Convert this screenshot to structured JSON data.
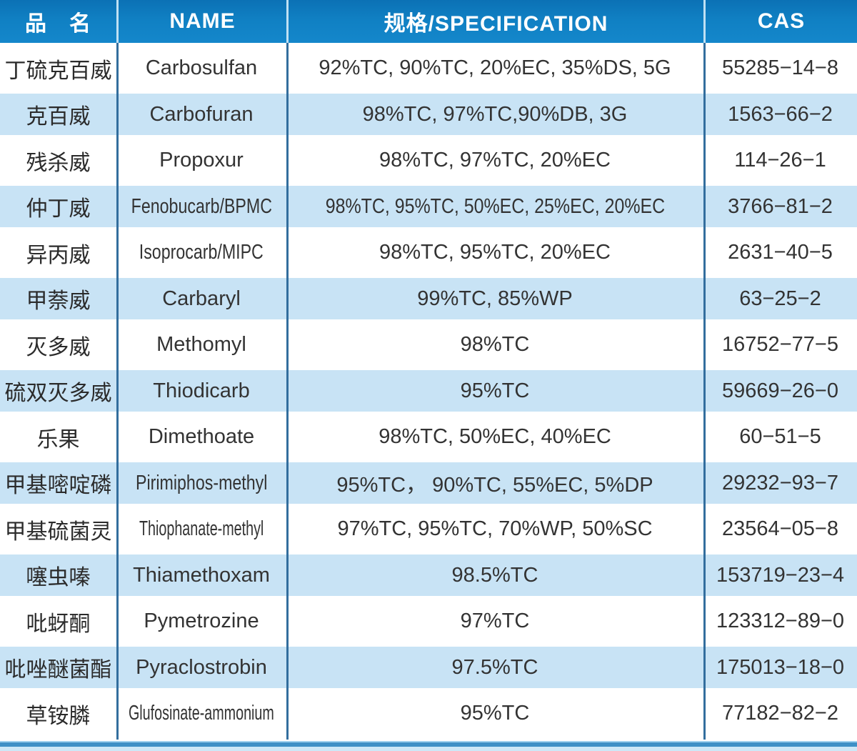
{
  "table": {
    "headers": [
      {
        "label": "品　名"
      },
      {
        "label": "NAME"
      },
      {
        "label": "规格/SPECIFICATION"
      },
      {
        "label": "CAS"
      }
    ],
    "rows": [
      {
        "cn": "丁硫克百威",
        "name": "Carbosulfan",
        "spec": "92%TC, 90%TC, 20%EC, 35%DS, 5G",
        "cas": "55285−14−8"
      },
      {
        "cn": "克百威",
        "name": "Carbofuran",
        "spec": "98%TC, 97%TC,90%DB, 3G",
        "cas": "1563−66−2"
      },
      {
        "cn": "残杀威",
        "name": "Propoxur",
        "spec": "98%TC, 97%TC, 20%EC",
        "cas": "114−26−1"
      },
      {
        "cn": "仲丁威",
        "name": "Fenobucarb/BPMC",
        "spec": "98%TC, 95%TC, 50%EC, 25%EC, 20%EC",
        "cas": "3766−81−2"
      },
      {
        "cn": "异丙威",
        "name": "Isoprocarb/MIPC",
        "spec": "98%TC, 95%TC, 20%EC",
        "cas": "2631−40−5"
      },
      {
        "cn": "甲萘威",
        "name": "Carbaryl",
        "spec": "99%TC, 85%WP",
        "cas": "63−25−2"
      },
      {
        "cn": "灭多威",
        "name": "Methomyl",
        "spec": "98%TC",
        "cas": "16752−77−5"
      },
      {
        "cn": "硫双灭多威",
        "name": "Thiodicarb",
        "spec": "95%TC",
        "cas": "59669−26−0"
      },
      {
        "cn": "乐果",
        "name": "Dimethoate",
        "spec": "98%TC, 50%EC, 40%EC",
        "cas": "60−51−5"
      },
      {
        "cn": "甲基嘧啶磷",
        "name": "Pirimiphos-methyl",
        "spec": "95%TC， 90%TC, 55%EC, 5%DP",
        "cas": "29232−93−7"
      },
      {
        "cn": "甲基硫菌灵",
        "name": "Thiophanate-methyl",
        "spec": "97%TC, 95%TC, 70%WP, 50%SC",
        "cas": "23564−05−8"
      },
      {
        "cn": "噻虫嗪",
        "name": "Thiamethoxam",
        "spec": "98.5%TC",
        "cas": "153719−23−4"
      },
      {
        "cn": "吡蚜酮",
        "name": "Pymetrozine",
        "spec": "97%TC",
        "cas": "123312−89−0"
      },
      {
        "cn": "吡唑醚菌酯",
        "name": "Pyraclostrobin",
        "spec": "97.5%TC",
        "cas": "175013−18−0"
      },
      {
        "cn": "草铵膦",
        "name": "Glufosinate-ammonium",
        "spec": "95%TC",
        "cas": "77182−82−2"
      }
    ]
  },
  "colors": {
    "header_blue": "#1080c3",
    "header_blue_dark": "#0b71b5",
    "row_alt_blue": "#c8e3f5",
    "column_line": "#336e9e",
    "header_divider": "#bfe0f3",
    "text": "#333333",
    "bottom_bar_light": "#9ed1ee",
    "bottom_bar_mid": "#3e90c6",
    "bottom_bar_pale": "#cde8f7"
  }
}
